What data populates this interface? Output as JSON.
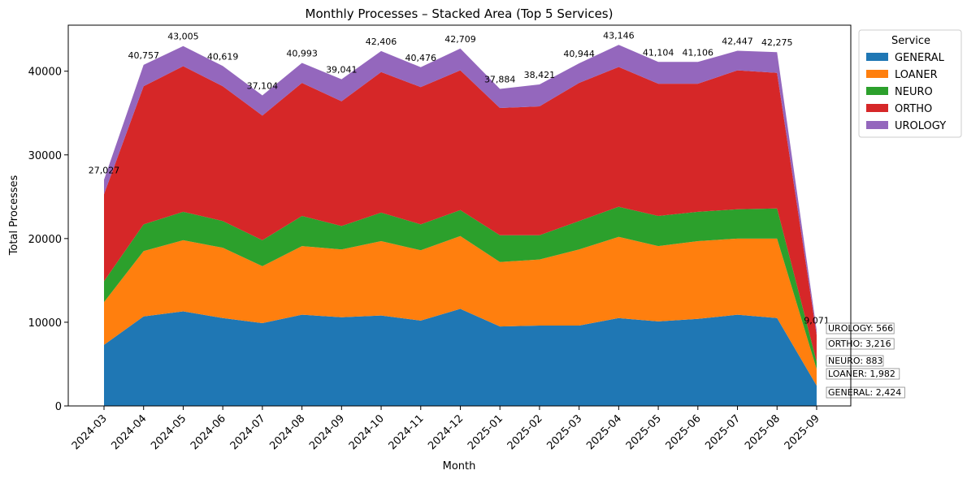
{
  "chart_data": {
    "type": "area",
    "stacked": true,
    "title": "Monthly Processes – Stacked Area (Top 5 Services)",
    "xlabel": "Month",
    "ylabel": "Total Processes",
    "ylim": [
      0,
      45500
    ],
    "yticks": [
      0,
      10000,
      20000,
      30000,
      40000
    ],
    "ytick_labels": [
      "0",
      "10000",
      "20000",
      "30000",
      "40000"
    ],
    "grid": false,
    "legend": {
      "title": "Service",
      "placement": "outside-top-right"
    },
    "categories": [
      "2024-03",
      "2024-04",
      "2024-05",
      "2024-06",
      "2024-07",
      "2024-08",
      "2024-09",
      "2024-10",
      "2024-11",
      "2024-12",
      "2025-01",
      "2025-02",
      "2025-03",
      "2025-04",
      "2025-05",
      "2025-06",
      "2025-07",
      "2025-08",
      "2025-09"
    ],
    "series": [
      {
        "name": "GENERAL",
        "color": "#1f77b4",
        "values": [
          7300,
          10700,
          11300,
          10500,
          9900,
          10900,
          10600,
          10800,
          10200,
          11600,
          9500,
          9600,
          9600,
          10500,
          10100,
          10400,
          10900,
          10500,
          2424
        ]
      },
      {
        "name": "LOANER",
        "color": "#ff7f0e",
        "values": [
          5100,
          7800,
          8500,
          8400,
          6800,
          8200,
          8100,
          8900,
          8400,
          8700,
          7700,
          7900,
          9100,
          9700,
          9000,
          9300,
          9100,
          9500,
          1982
        ]
      },
      {
        "name": "NEURO",
        "color": "#2ca02c",
        "values": [
          2500,
          3200,
          3400,
          3200,
          3100,
          3600,
          2800,
          3400,
          3100,
          3100,
          3200,
          2900,
          3400,
          3600,
          3600,
          3500,
          3500,
          3600,
          883
        ]
      },
      {
        "name": "ORTHO",
        "color": "#d62728",
        "values": [
          10400,
          16500,
          17400,
          16100,
          14900,
          15900,
          14900,
          16800,
          16400,
          16700,
          15200,
          15400,
          16500,
          16700,
          15800,
          15300,
          16600,
          16200,
          3216
        ]
      },
      {
        "name": "UROLOGY",
        "color": "#9467bd",
        "values": [
          1727,
          2557,
          2405,
          2419,
          2404,
          2393,
          2641,
          2506,
          2376,
          2609,
          2284,
          2621,
          2344,
          2646,
          2604,
          2606,
          2347,
          2475,
          566
        ]
      }
    ],
    "totals": [
      27027,
      40757,
      43005,
      40619,
      37104,
      40993,
      39041,
      42406,
      40476,
      42709,
      37884,
      38421,
      40944,
      43146,
      41104,
      41106,
      42447,
      42275,
      9071
    ],
    "total_labels": [
      "27,027",
      "40,757",
      "43,005",
      "40,619",
      "37,104",
      "40,993",
      "39,041",
      "42,406",
      "40,476",
      "42,709",
      "37,884",
      "38,421",
      "40,944",
      "43,146",
      "41,104",
      "41,106",
      "42,447",
      "42,275",
      "9,071"
    ],
    "last_point_labels": [
      "GENERAL: 2,424",
      "LOANER: 1,982",
      "NEURO: 883",
      "ORTHO: 3,216",
      "UROLOGY: 566"
    ]
  }
}
